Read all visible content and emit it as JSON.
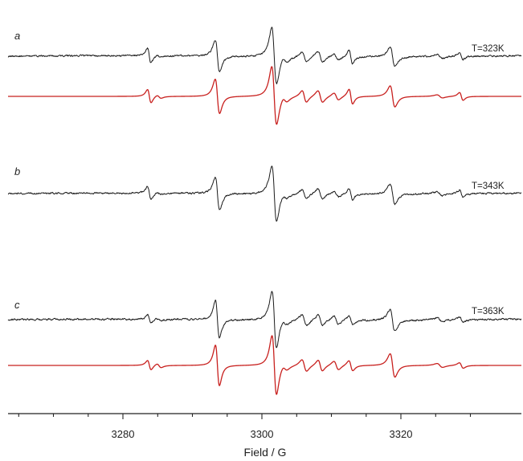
{
  "chart_data": {
    "type": "line",
    "xlabel": "Field / G",
    "ylabel": "",
    "xlim": [
      3264.5,
      3333.5
    ],
    "major_ticks": [
      3280,
      3300,
      3320
    ],
    "minor_step": 5,
    "grid": false,
    "panels": [
      {
        "label": "a",
        "temperature": "T=323K",
        "series": [
          {
            "kind": "experimental",
            "color": "#1a1a1a",
            "noise": 0.03,
            "seed": 11,
            "baseline_drift": 0.06,
            "lines": [
              {
                "x": 3283.8,
                "amp": 0.95,
                "w": 0.45
              },
              {
                "x": 3285.2,
                "amp": 0.18,
                "w": 0.55
              },
              {
                "x": 3293.6,
                "amp": 2.0,
                "w": 0.55
              },
              {
                "x": 3301.7,
                "amp": 1.1,
                "w": 0.55
              },
              {
                "x": 3303.3,
                "amp": 0.45,
                "w": 0.65
              },
              {
                "x": 3306.1,
                "amp": 0.65,
                "w": 0.55
              },
              {
                "x": 3301.8,
                "amp": 2.6,
                "w": 0.62
              },
              {
                "x": 3308.4,
                "amp": 0.7,
                "w": 0.6
              },
              {
                "x": 3310.7,
                "amp": 0.4,
                "w": 0.6
              },
              {
                "x": 3312.8,
                "amp": 0.85,
                "w": 0.45
              },
              {
                "x": 3318.8,
                "amp": 1.3,
                "w": 0.6
              },
              {
                "x": 3325.6,
                "amp": 0.25,
                "w": 0.7
              },
              {
                "x": 3328.7,
                "amp": 0.45,
                "w": 0.45
              }
            ]
          },
          {
            "kind": "simulated",
            "color": "#c8201e",
            "noise": 0,
            "seed": 0,
            "baseline_drift": 0,
            "lines": [
              {
                "x": 3283.8,
                "amp": 0.85,
                "w": 0.45
              },
              {
                "x": 3285.2,
                "amp": 0.2,
                "w": 0.55
              },
              {
                "x": 3293.6,
                "amp": 2.2,
                "w": 0.55
              },
              {
                "x": 3301.7,
                "amp": 1.1,
                "w": 0.55
              },
              {
                "x": 3303.3,
                "amp": 0.4,
                "w": 0.65
              },
              {
                "x": 3306.1,
                "amp": 0.75,
                "w": 0.55
              },
              {
                "x": 3301.8,
                "amp": 2.7,
                "w": 0.62
              },
              {
                "x": 3308.4,
                "amp": 0.75,
                "w": 0.6
              },
              {
                "x": 3310.7,
                "amp": 0.45,
                "w": 0.6
              },
              {
                "x": 3312.8,
                "amp": 0.95,
                "w": 0.45
              },
              {
                "x": 3318.8,
                "amp": 1.35,
                "w": 0.6
              },
              {
                "x": 3325.6,
                "amp": 0.2,
                "w": 0.7
              },
              {
                "x": 3328.7,
                "amp": 0.5,
                "w": 0.45
              }
            ]
          }
        ]
      },
      {
        "label": "b",
        "temperature": "T=343K",
        "series": [
          {
            "kind": "experimental",
            "color": "#1a1a1a",
            "noise": 0.03,
            "seed": 23,
            "baseline_drift": 0.05,
            "lines": [
              {
                "x": 3283.8,
                "amp": 0.8,
                "w": 0.45
              },
              {
                "x": 3285.2,
                "amp": 0.15,
                "w": 0.55
              },
              {
                "x": 3293.6,
                "amp": 2.1,
                "w": 0.55
              },
              {
                "x": 3301.7,
                "amp": 0.85,
                "w": 0.55
              },
              {
                "x": 3303.3,
                "amp": 0.3,
                "w": 0.6
              },
              {
                "x": 3306.1,
                "amp": 0.55,
                "w": 0.55
              },
              {
                "x": 3301.8,
                "amp": 2.8,
                "w": 0.6
              },
              {
                "x": 3308.4,
                "amp": 0.65,
                "w": 0.6
              },
              {
                "x": 3310.7,
                "amp": 0.35,
                "w": 0.6
              },
              {
                "x": 3312.8,
                "amp": 0.7,
                "w": 0.45
              },
              {
                "x": 3318.8,
                "amp": 1.3,
                "w": 0.6
              },
              {
                "x": 3325.6,
                "amp": 0.25,
                "w": 0.7
              },
              {
                "x": 3328.7,
                "amp": 0.45,
                "w": 0.45
              }
            ]
          }
        ]
      },
      {
        "label": "c",
        "temperature": "T=363K",
        "series": [
          {
            "kind": "experimental",
            "color": "#1a1a1a",
            "noise": 0.032,
            "seed": 37,
            "baseline_drift": 0.05,
            "lines": [
              {
                "x": 3283.8,
                "amp": 0.55,
                "w": 0.45
              },
              {
                "x": 3285.2,
                "amp": 0.15,
                "w": 0.55
              },
              {
                "x": 3293.6,
                "amp": 2.4,
                "w": 0.5
              },
              {
                "x": 3301.7,
                "amp": 0.7,
                "w": 0.6
              },
              {
                "x": 3303.3,
                "amp": 0.35,
                "w": 0.65
              },
              {
                "x": 3306.1,
                "amp": 0.7,
                "w": 0.6
              },
              {
                "x": 3301.8,
                "amp": 3.0,
                "w": 0.55
              },
              {
                "x": 3308.4,
                "amp": 0.7,
                "w": 0.55
              },
              {
                "x": 3310.7,
                "amp": 0.5,
                "w": 0.6
              },
              {
                "x": 3312.8,
                "amp": 0.55,
                "w": 0.5
              },
              {
                "x": 3318.8,
                "amp": 1.4,
                "w": 0.6
              },
              {
                "x": 3325.6,
                "amp": 0.2,
                "w": 0.7
              },
              {
                "x": 3328.7,
                "amp": 0.35,
                "w": 0.5
              }
            ]
          },
          {
            "kind": "simulated",
            "color": "#c8201e",
            "noise": 0,
            "seed": 0,
            "baseline_drift": 0,
            "lines": [
              {
                "x": 3283.8,
                "amp": 0.6,
                "w": 0.45
              },
              {
                "x": 3285.2,
                "amp": 0.25,
                "w": 0.55
              },
              {
                "x": 3293.6,
                "amp": 2.6,
                "w": 0.5
              },
              {
                "x": 3301.7,
                "amp": 0.75,
                "w": 0.6
              },
              {
                "x": 3303.3,
                "amp": 0.35,
                "w": 0.65
              },
              {
                "x": 3306.1,
                "amp": 0.75,
                "w": 0.6
              },
              {
                "x": 3301.8,
                "amp": 3.1,
                "w": 0.55
              },
              {
                "x": 3308.4,
                "amp": 0.7,
                "w": 0.55
              },
              {
                "x": 3310.7,
                "amp": 0.55,
                "w": 0.6
              },
              {
                "x": 3312.8,
                "amp": 0.65,
                "w": 0.5
              },
              {
                "x": 3318.8,
                "amp": 1.5,
                "w": 0.6
              },
              {
                "x": 3325.6,
                "amp": 0.25,
                "w": 0.7
              },
              {
                "x": 3328.7,
                "amp": 0.35,
                "w": 0.5
              }
            ]
          }
        ]
      }
    ]
  }
}
